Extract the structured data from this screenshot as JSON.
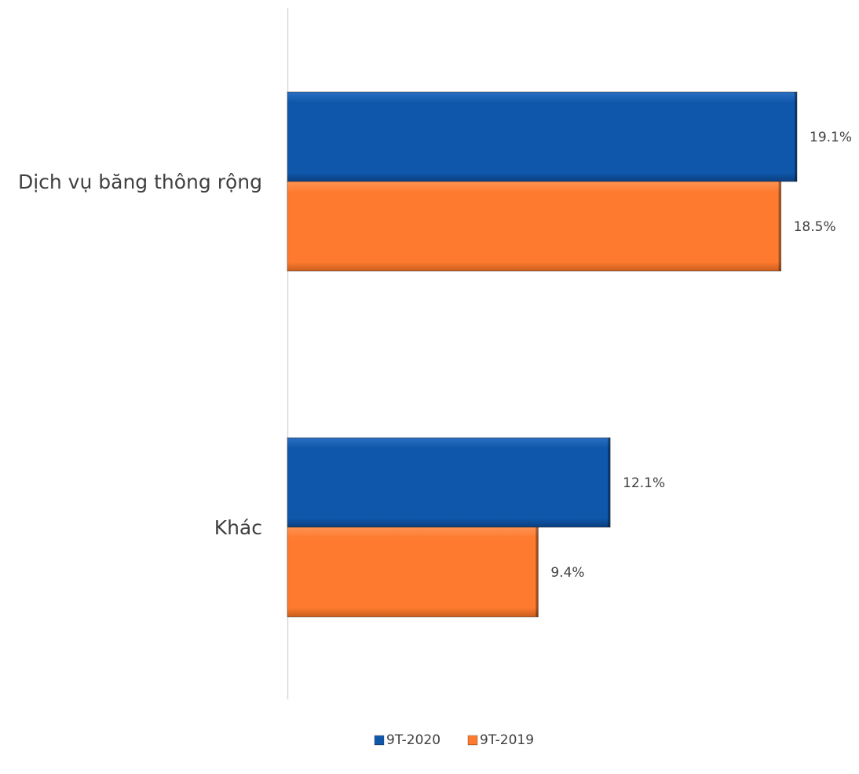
{
  "chart_data": {
    "type": "bar",
    "orientation": "horizontal",
    "categories": [
      "Dịch vụ băng thông rộng",
      "Khác"
    ],
    "series": [
      {
        "name": "9T-2020",
        "values": [
          19.1,
          12.1
        ],
        "labels": [
          "19.1%",
          "12.1%"
        ],
        "color": "#0F57AB"
      },
      {
        "name": "9T-2019",
        "values": [
          18.5,
          9.4
        ],
        "labels": [
          "18.5%",
          "9.4%"
        ],
        "color": "#FD7A2E"
      }
    ],
    "xlim": [
      0,
      21.5
    ],
    "grid": false,
    "legend_position": "bottom-center",
    "value_unit": "%"
  }
}
